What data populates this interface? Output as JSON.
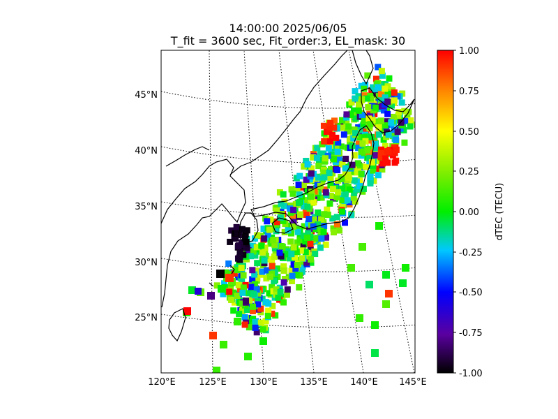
{
  "title": {
    "line1": "14:00:00 2025/06/05",
    "line2": "T_fit = 3600 sec, Fit_order:3, EL_mask: 30"
  },
  "map": {
    "lat_labels": [
      "25°N",
      "30°N",
      "35°N",
      "40°N",
      "45°N"
    ],
    "lon_labels": [
      "120°E",
      "125°E",
      "130°E",
      "135°E",
      "140°E",
      "145°E"
    ],
    "lon_range": [
      120,
      145
    ],
    "lat_range": [
      20,
      49
    ]
  },
  "colorbar": {
    "label": "dTEC (TECU)",
    "ticks": [
      "1.00",
      "0.75",
      "0.50",
      "0.25",
      "0.00",
      "-0.25",
      "-0.50",
      "-0.75",
      "-1.00"
    ],
    "colormap": "jet-like (black-purple-blue-cyan-green-yellow-orange-red)",
    "range": [
      -1.0,
      1.0
    ]
  }
}
